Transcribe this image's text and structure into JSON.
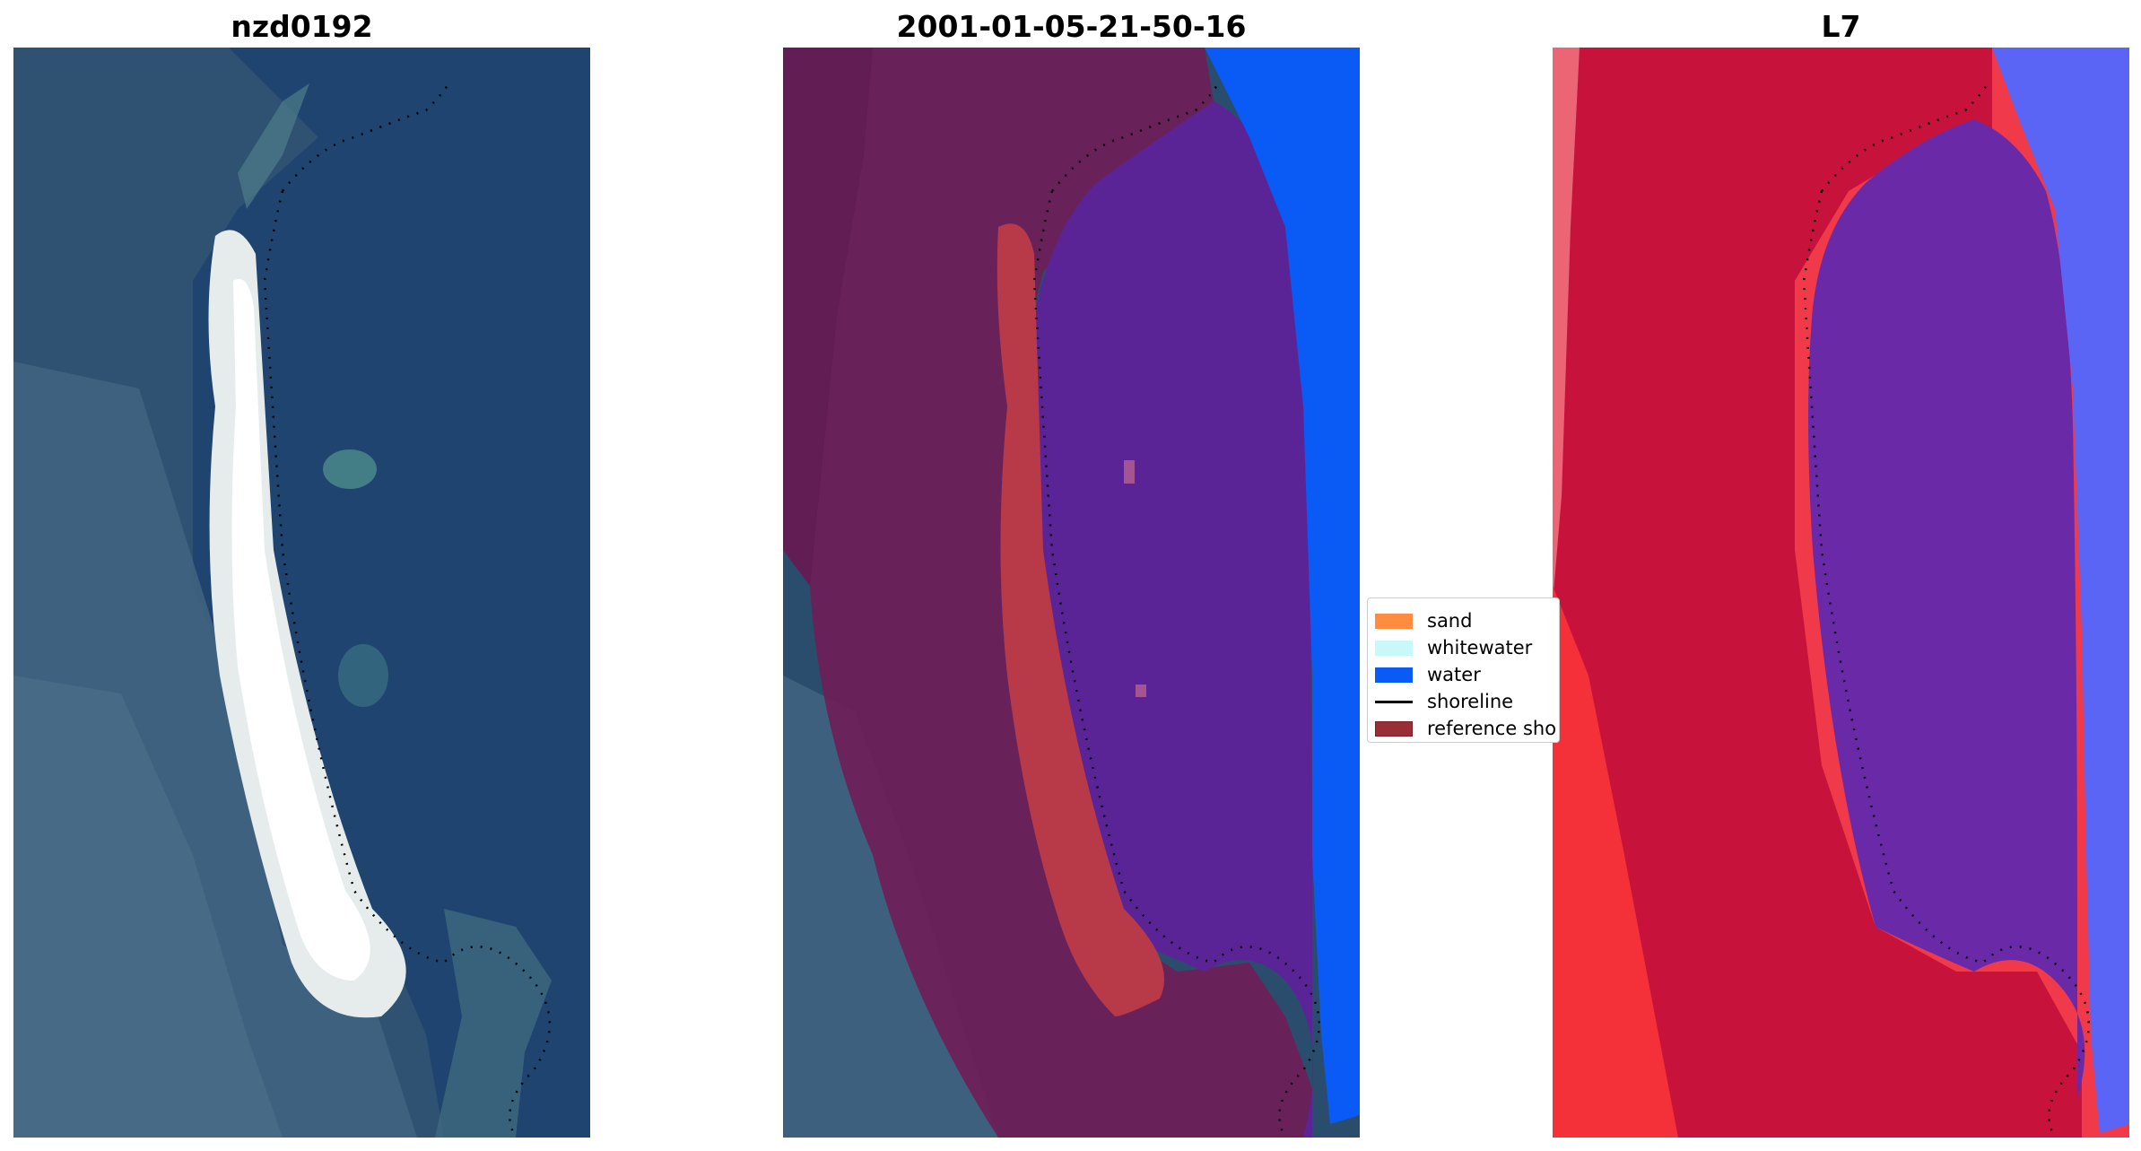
{
  "panels": {
    "rgb": {
      "title": "nzd0192"
    },
    "classified": {
      "title": "2001-01-05-21-50-16"
    },
    "index": {
      "title": "L7"
    }
  },
  "legend": {
    "items": [
      {
        "label": "sand",
        "color": "#ff8c40"
      },
      {
        "label": "whitewater",
        "color": "#c8f8f8"
      },
      {
        "label": "water",
        "color": "#0a5af5"
      },
      {
        "label": "shoreline",
        "color": "#000000"
      },
      {
        "label": "reference sho",
        "color": "#9a2e36"
      }
    ]
  },
  "colors": {
    "rgb_water": "#1f4470",
    "rgb_land": "#3c5e7a",
    "sand_beach": "#f2f5f2",
    "class_land": "#6e1e58",
    "class_water_overlay": "#5a2496",
    "class_sand_overlay": "#b83a48",
    "class_ocean": "#0a5af5",
    "index_red": "#e8142e",
    "index_purple": "#6a2aa8",
    "index_blue": "#5a64f5",
    "shoreline_dots": "#000000"
  }
}
